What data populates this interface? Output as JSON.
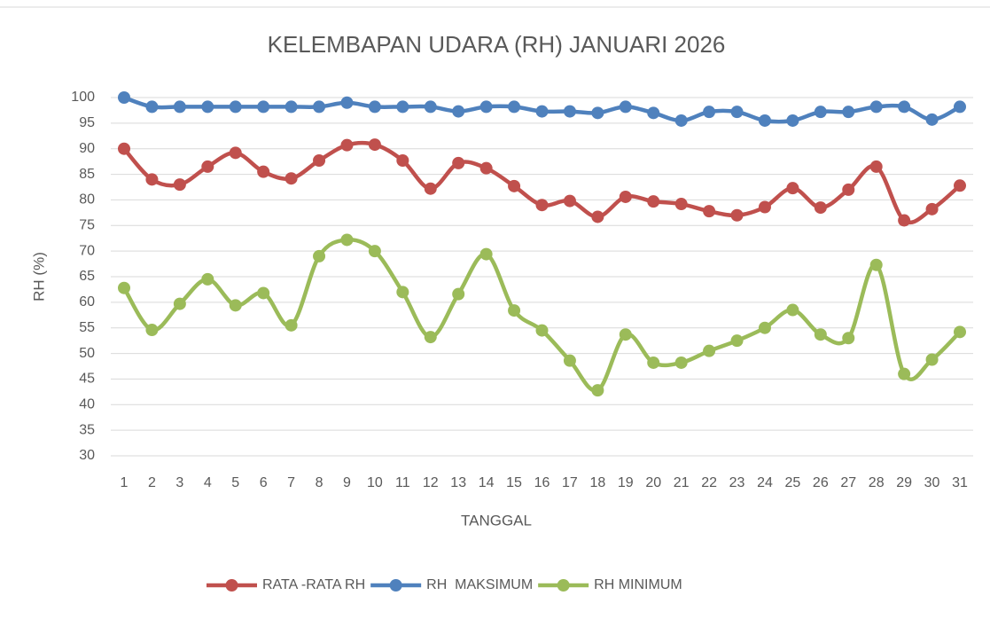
{
  "chart_data": {
    "type": "line",
    "title": "KELEMBAPAN UDARA (RH) JANUARI 2026",
    "x_label": "TANGGAL",
    "y_label": "RH (%)",
    "categories": [
      "1",
      "2",
      "3",
      "4",
      "5",
      "6",
      "7",
      "8",
      "9",
      "10",
      "11",
      "12",
      "13",
      "14",
      "15",
      "16",
      "17",
      "18",
      "19",
      "20",
      "21",
      "22",
      "23",
      "24",
      "25",
      "26",
      "27",
      "28",
      "29",
      "30",
      "31"
    ],
    "series": [
      {
        "name": "RATA -RATA RH",
        "color": "#c0504d",
        "values": [
          90,
          84,
          83,
          86.5,
          89.2,
          85.5,
          84.2,
          87.7,
          90.7,
          90.8,
          87.7,
          82.2,
          87.2,
          86.2,
          82.7,
          79,
          79.8,
          76.7,
          80.6,
          79.7,
          79.2,
          77.8,
          77,
          78.6,
          82.3,
          78.5,
          82,
          86.5,
          76,
          78.2,
          82.8
        ]
      },
      {
        "name": "RH  MAKSIMUM",
        "color": "#4f81bd",
        "values": [
          100,
          98.2,
          98.2,
          98.2,
          98.2,
          98.2,
          98.2,
          98.2,
          99,
          98.2,
          98.2,
          98.2,
          97.3,
          98.2,
          98.2,
          97.3,
          97.3,
          97,
          98.2,
          97,
          95.5,
          97.2,
          97.2,
          95.5,
          95.5,
          97.2,
          97.2,
          98.2,
          98.2,
          95.7,
          98.2
        ]
      },
      {
        "name": "RH MINIMUM",
        "color": "#9bbb59",
        "values": [
          62.8,
          54.6,
          59.7,
          64.5,
          59.4,
          61.8,
          55.5,
          69,
          72.2,
          70,
          62,
          53.2,
          61.6,
          69.4,
          58.4,
          54.5,
          48.6,
          42.8,
          53.7,
          48.2,
          48.2,
          50.5,
          52.5,
          55,
          58.5,
          53.7,
          53,
          67.3,
          46,
          48.8,
          54.2
        ]
      }
    ],
    "ylim": [
      30,
      100
    ],
    "yticks": [
      30,
      35,
      40,
      45,
      50,
      55,
      60,
      65,
      70,
      75,
      80,
      85,
      90,
      95,
      100
    ],
    "grid": true,
    "legend": "bottom"
  }
}
